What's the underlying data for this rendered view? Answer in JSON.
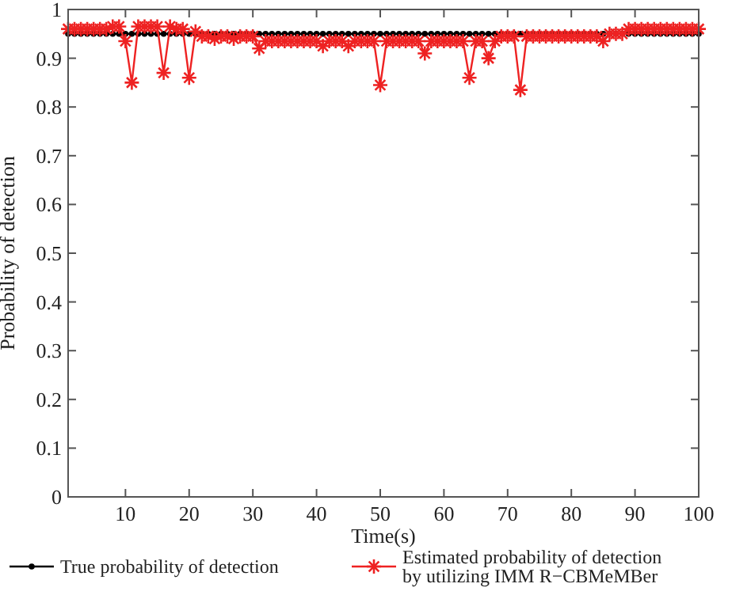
{
  "chart_data": {
    "type": "line",
    "xlabel": "Time(s)",
    "ylabel": "Probability of detection",
    "xlim": [
      1,
      100
    ],
    "xticks": [
      10,
      20,
      30,
      40,
      50,
      60,
      70,
      80,
      90,
      100
    ],
    "ylim": [
      0,
      1
    ],
    "yticks": [
      0,
      0.1,
      0.2,
      0.3,
      0.4,
      0.5,
      0.6,
      0.7,
      0.8,
      0.9,
      1
    ],
    "grid": false,
    "legend": "bottom",
    "line_style": "solid",
    "x": [
      1,
      2,
      3,
      4,
      5,
      6,
      7,
      8,
      9,
      10,
      11,
      12,
      13,
      14,
      15,
      16,
      17,
      18,
      19,
      20,
      21,
      22,
      23,
      24,
      25,
      26,
      27,
      28,
      29,
      30,
      31,
      32,
      33,
      34,
      35,
      36,
      37,
      38,
      39,
      40,
      41,
      42,
      43,
      44,
      45,
      46,
      47,
      48,
      49,
      50,
      51,
      52,
      53,
      54,
      55,
      56,
      57,
      58,
      59,
      60,
      61,
      62,
      63,
      64,
      65,
      66,
      67,
      68,
      69,
      70,
      71,
      72,
      73,
      74,
      75,
      76,
      77,
      78,
      79,
      80,
      81,
      82,
      83,
      84,
      85,
      86,
      87,
      88,
      89,
      90,
      91,
      92,
      93,
      94,
      95,
      96,
      97,
      98,
      99,
      100
    ],
    "series": [
      {
        "name": "True probability of detection",
        "color": "#000000",
        "marker": "circle",
        "values": [
          0.95,
          0.95,
          0.95,
          0.95,
          0.95,
          0.95,
          0.95,
          0.95,
          0.95,
          0.95,
          0.95,
          0.95,
          0.95,
          0.95,
          0.95,
          0.95,
          0.95,
          0.95,
          0.95,
          0.95,
          0.95,
          0.95,
          0.95,
          0.95,
          0.95,
          0.95,
          0.95,
          0.95,
          0.95,
          0.95,
          0.95,
          0.95,
          0.95,
          0.95,
          0.95,
          0.95,
          0.95,
          0.95,
          0.95,
          0.95,
          0.95,
          0.95,
          0.95,
          0.95,
          0.95,
          0.95,
          0.95,
          0.95,
          0.95,
          0.95,
          0.95,
          0.95,
          0.95,
          0.95,
          0.95,
          0.95,
          0.95,
          0.95,
          0.95,
          0.95,
          0.95,
          0.95,
          0.95,
          0.95,
          0.95,
          0.95,
          0.95,
          0.95,
          0.95,
          0.95,
          0.95,
          0.95,
          0.95,
          0.95,
          0.95,
          0.95,
          0.95,
          0.95,
          0.95,
          0.95,
          0.95,
          0.95,
          0.95,
          0.95,
          0.95,
          0.95,
          0.95,
          0.95,
          0.95,
          0.95,
          0.95,
          0.95,
          0.95,
          0.95,
          0.95,
          0.95,
          0.95,
          0.95,
          0.95,
          0.95
        ]
      },
      {
        "name": "Estimated  probability of detection by utilizing IMM R−CBMeMBer",
        "color": "#ee2222",
        "marker": "cross",
        "values": [
          0.96,
          0.96,
          0.96,
          0.96,
          0.96,
          0.96,
          0.96,
          0.965,
          0.965,
          0.935,
          0.85,
          0.965,
          0.965,
          0.965,
          0.965,
          0.87,
          0.965,
          0.96,
          0.96,
          0.86,
          0.955,
          0.945,
          0.945,
          0.94,
          0.945,
          0.945,
          0.94,
          0.945,
          0.945,
          0.945,
          0.92,
          0.935,
          0.935,
          0.935,
          0.935,
          0.935,
          0.935,
          0.935,
          0.935,
          0.935,
          0.925,
          0.935,
          0.935,
          0.935,
          0.925,
          0.935,
          0.935,
          0.935,
          0.935,
          0.845,
          0.935,
          0.935,
          0.935,
          0.935,
          0.935,
          0.935,
          0.91,
          0.935,
          0.935,
          0.935,
          0.935,
          0.935,
          0.935,
          0.86,
          0.935,
          0.935,
          0.9,
          0.935,
          0.945,
          0.945,
          0.945,
          0.835,
          0.945,
          0.945,
          0.945,
          0.945,
          0.945,
          0.945,
          0.945,
          0.945,
          0.945,
          0.945,
          0.945,
          0.945,
          0.935,
          0.95,
          0.95,
          0.95,
          0.96,
          0.96,
          0.96,
          0.96,
          0.96,
          0.96,
          0.96,
          0.96,
          0.96,
          0.96,
          0.96,
          0.96
        ]
      }
    ]
  }
}
